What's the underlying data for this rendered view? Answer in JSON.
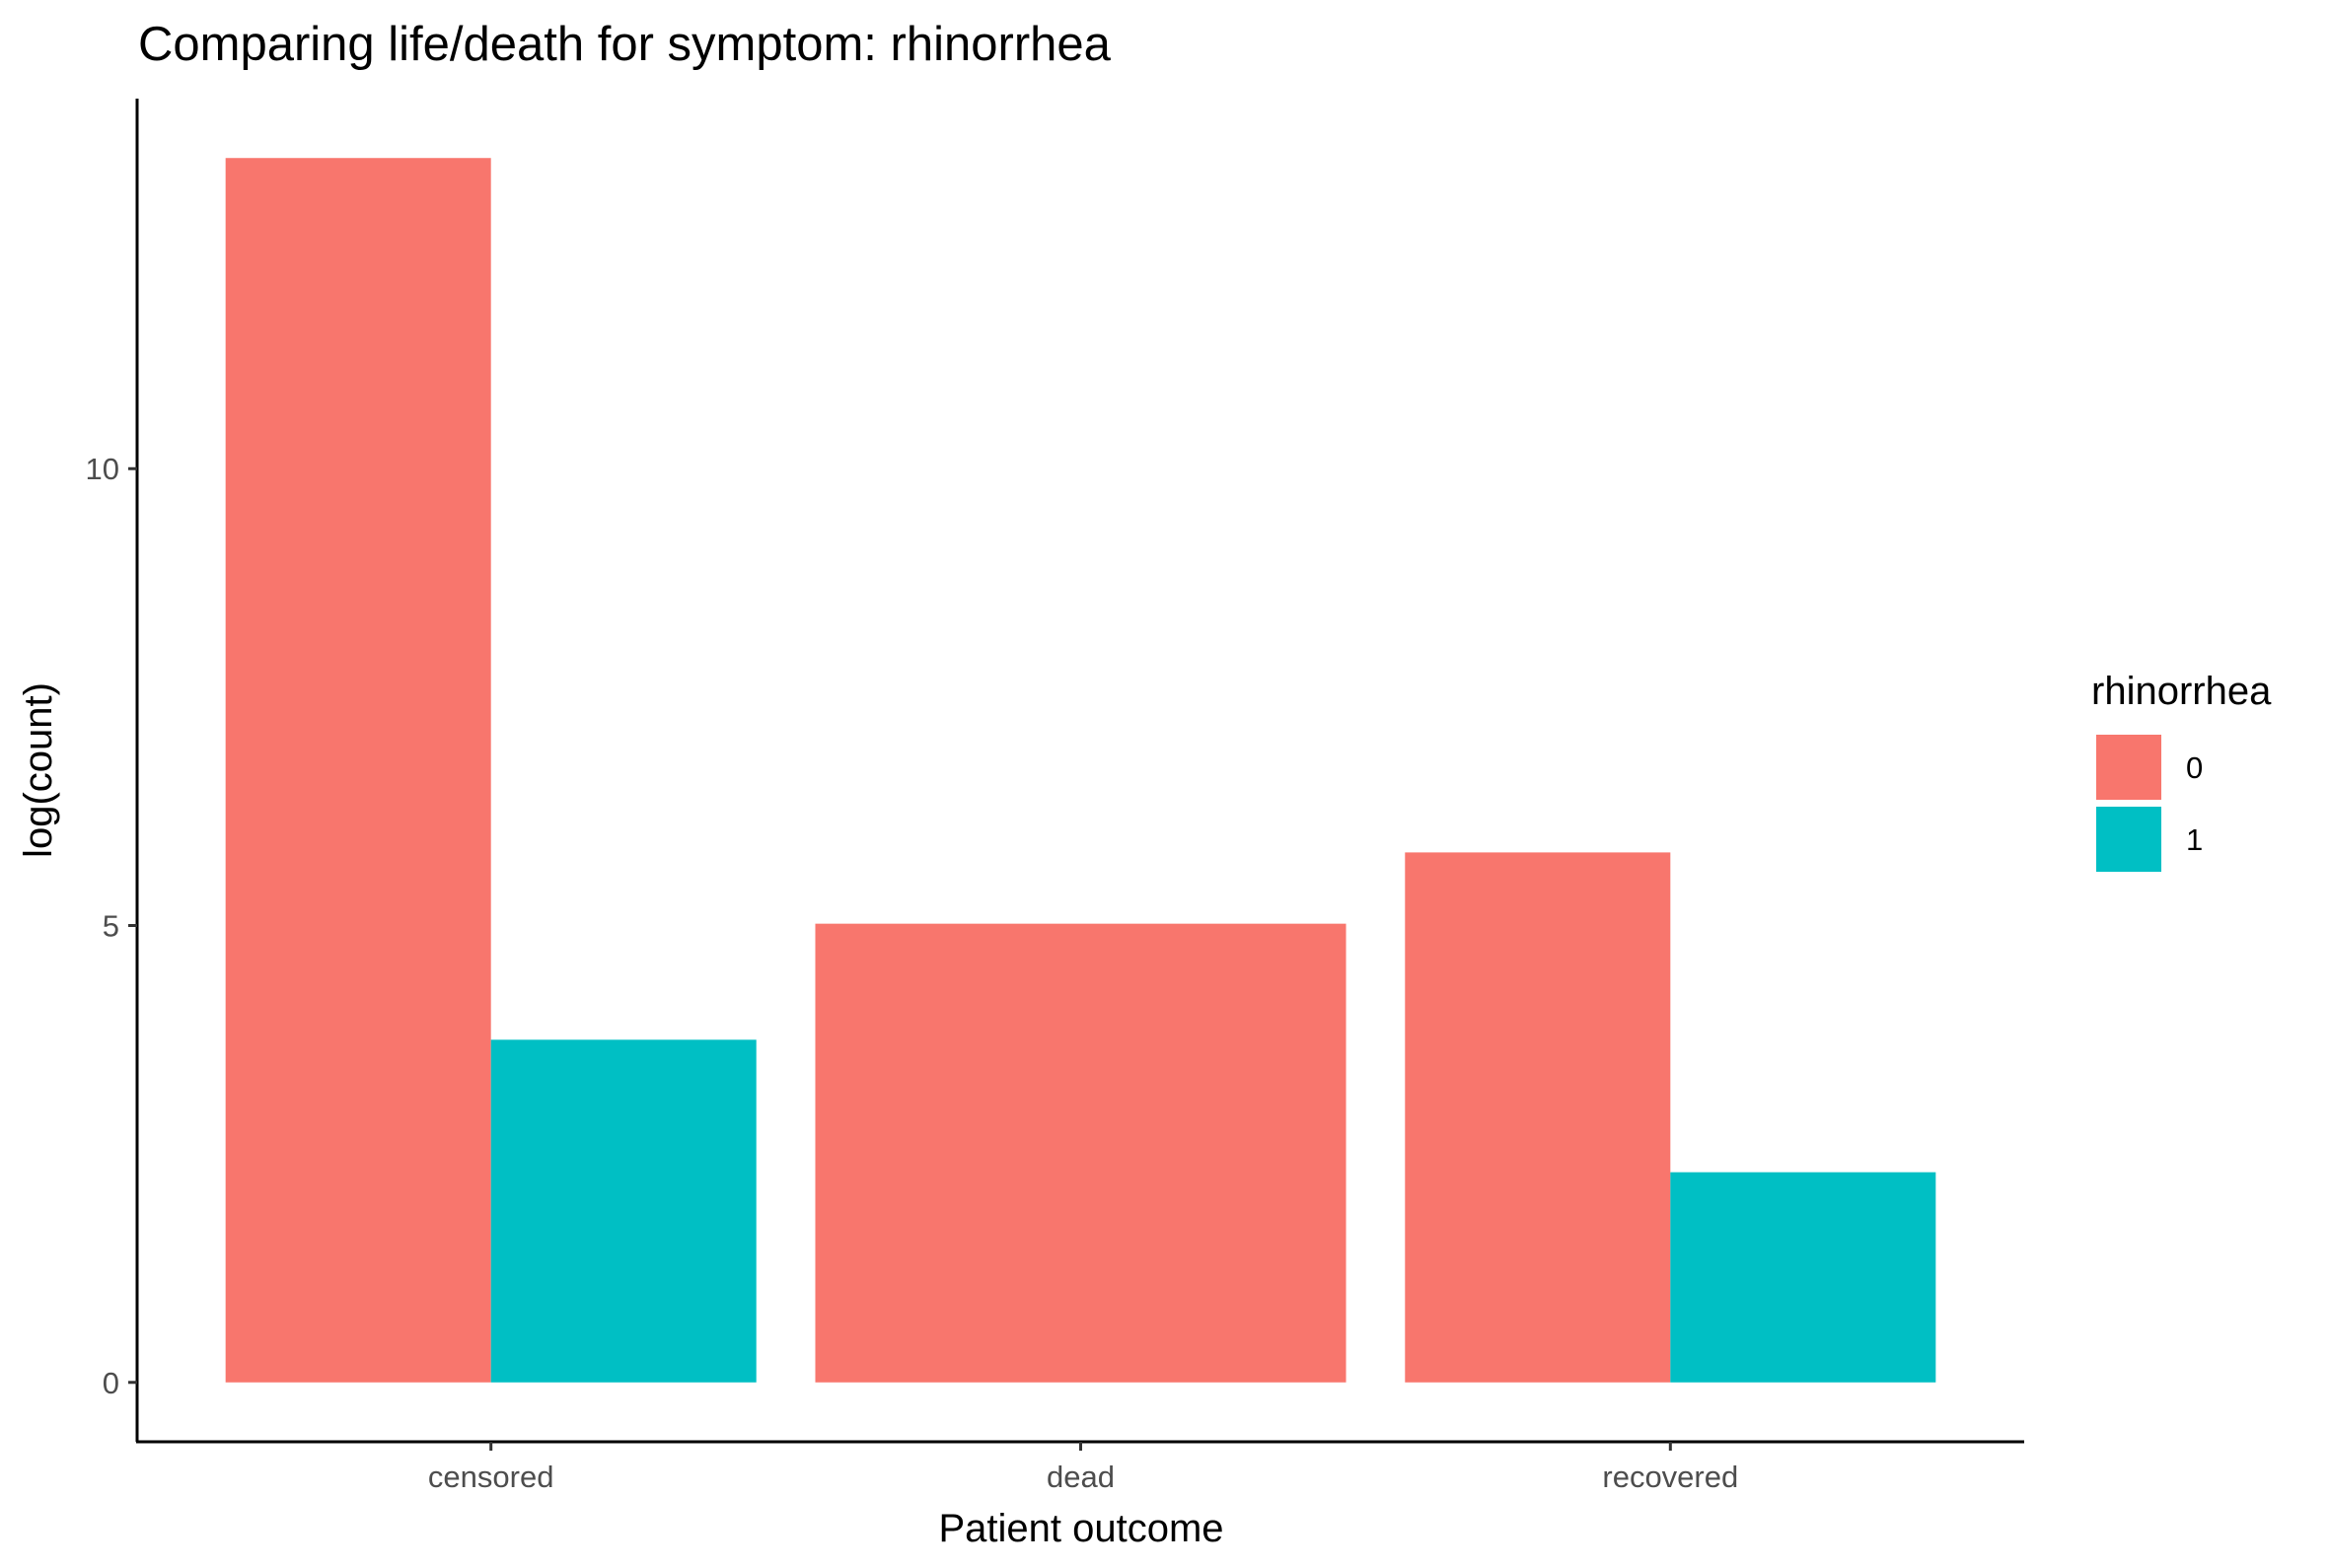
{
  "chart_data": {
    "type": "bar",
    "title": "Comparing life/death for symptom: rhinorrhea",
    "xlabel": "Patient outcome",
    "ylabel": "log(count)",
    "categories": [
      "censored",
      "dead",
      "recovered"
    ],
    "yticks": [
      0,
      5,
      10
    ],
    "ylim": [
      -0.65,
      14.05
    ],
    "grid": false,
    "legend": {
      "title": "rhinorrhea",
      "placement": "right",
      "entries": [
        {
          "label": "0",
          "color": "#F8766D"
        },
        {
          "label": "1",
          "color": "#00BFC4"
        }
      ]
    },
    "series": [
      {
        "name": "0",
        "color": "#F8766D",
        "values": [
          13.4,
          5.02,
          5.8
        ]
      },
      {
        "name": "1",
        "color": "#00BFC4",
        "values": [
          3.75,
          null,
          2.3
        ]
      }
    ]
  }
}
